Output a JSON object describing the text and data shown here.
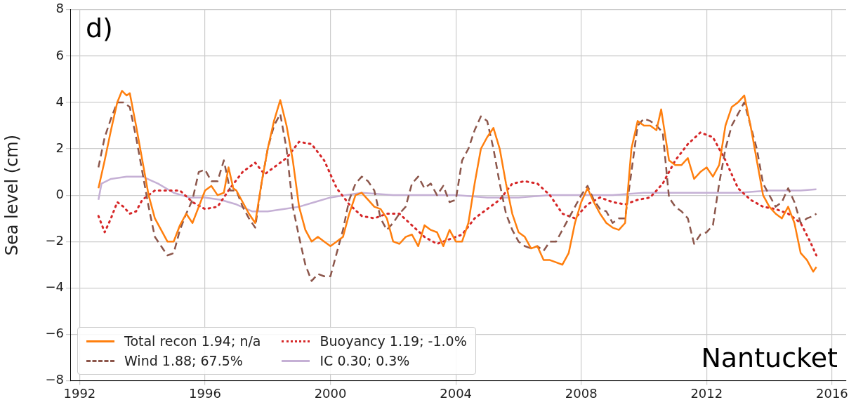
{
  "chart_data": {
    "type": "line",
    "ylabel": "Sea level (cm)",
    "annotations": [
      "d)",
      "Nantucket"
    ],
    "xlim": [
      1991.7,
      2016.45
    ],
    "xticks": [
      1992,
      1996,
      2000,
      2004,
      2008,
      2012,
      2016
    ],
    "ylim": [
      -8,
      8
    ],
    "yticks": [
      -8,
      -6,
      -4,
      -2,
      0,
      2,
      4,
      6,
      8
    ],
    "grid": true,
    "legend": "bottom left",
    "marker": "none",
    "series": [
      {
        "name": "Total recon 1.94; n/a",
        "color": "#ff7f0e",
        "line_style": "solid",
        "x": [
          1992.6,
          1992.8,
          1993.0,
          1993.2,
          1993.35,
          1993.5,
          1993.6,
          1993.8,
          1994.0,
          1994.2,
          1994.4,
          1994.6,
          1994.8,
          1995.0,
          1995.2,
          1995.4,
          1995.6,
          1995.8,
          1996.0,
          1996.2,
          1996.4,
          1996.6,
          1996.75,
          1996.9,
          1997.0,
          1997.2,
          1997.4,
          1997.6,
          1997.8,
          1998.0,
          1998.2,
          1998.4,
          1998.6,
          1998.8,
          1999.0,
          1999.2,
          1999.4,
          1999.6,
          1999.8,
          2000.0,
          2000.2,
          2000.4,
          2000.6,
          2000.8,
          2001.0,
          2001.2,
          2001.4,
          2001.6,
          2001.8,
          2002.0,
          2002.2,
          2002.4,
          2002.6,
          2002.8,
          2003.0,
          2003.2,
          2003.4,
          2003.6,
          2003.8,
          2004.0,
          2004.2,
          2004.4,
          2004.6,
          2004.8,
          2005.0,
          2005.2,
          2005.4,
          2005.6,
          2005.8,
          2006.0,
          2006.2,
          2006.4,
          2006.6,
          2006.8,
          2007.0,
          2007.2,
          2007.4,
          2007.6,
          2007.8,
          2008.0,
          2008.2,
          2008.4,
          2008.6,
          2008.8,
          2009.0,
          2009.2,
          2009.4,
          2009.6,
          2009.8,
          2010.0,
          2010.2,
          2010.4,
          2010.55,
          2010.8,
          2011.0,
          2011.2,
          2011.4,
          2011.6,
          2011.8,
          2012.0,
          2012.2,
          2012.4,
          2012.6,
          2012.8,
          2013.0,
          2013.2,
          2013.4,
          2013.6,
          2013.8,
          2014.0,
          2014.2,
          2014.4,
          2014.6,
          2014.8,
          2015.0,
          2015.2,
          2015.4,
          2015.5
        ],
        "values": [
          0.3,
          1.5,
          2.8,
          4.0,
          4.5,
          4.3,
          4.4,
          3.0,
          1.5,
          0.0,
          -1.0,
          -1.5,
          -2.0,
          -2.0,
          -1.3,
          -0.8,
          -1.2,
          -0.5,
          0.2,
          0.4,
          0.0,
          0.1,
          1.2,
          0.3,
          0.2,
          -0.3,
          -0.8,
          -1.2,
          0.5,
          2.0,
          3.2,
          4.1,
          3.0,
          1.5,
          -0.5,
          -1.5,
          -2.0,
          -1.8,
          -2.0,
          -2.2,
          -2.0,
          -1.8,
          -0.8,
          0.0,
          0.1,
          -0.2,
          -0.5,
          -0.6,
          -1.0,
          -2.0,
          -2.1,
          -1.8,
          -1.7,
          -2.2,
          -1.3,
          -1.5,
          -1.6,
          -2.2,
          -1.5,
          -2.0,
          -2.0,
          -1.2,
          0.5,
          2.0,
          2.5,
          2.9,
          2.0,
          0.5,
          -0.8,
          -1.6,
          -1.8,
          -2.3,
          -2.2,
          -2.8,
          -2.8,
          -2.9,
          -3.0,
          -2.5,
          -1.2,
          -0.3,
          0.3,
          -0.3,
          -0.8,
          -1.2,
          -1.4,
          -1.5,
          -1.2,
          2.0,
          3.2,
          3.0,
          3.0,
          2.8,
          3.7,
          1.5,
          1.3,
          1.3,
          1.6,
          0.7,
          1.0,
          1.2,
          0.8,
          1.3,
          3.0,
          3.8,
          4.0,
          4.3,
          3.0,
          1.5,
          0.0,
          -0.5,
          -0.8,
          -1.0,
          -0.5,
          -1.2,
          -2.5,
          -2.8,
          -3.3,
          -3.1
        ]
      },
      {
        "name": "Wind 1.88; 67.5%",
        "color": "#8c564b",
        "line_style": "dashed",
        "x": [
          1992.6,
          1992.8,
          1993.0,
          1993.2,
          1993.4,
          1993.6,
          1993.8,
          1994.0,
          1994.2,
          1994.4,
          1994.6,
          1994.8,
          1995.0,
          1995.2,
          1995.4,
          1995.6,
          1995.8,
          1996.0,
          1996.2,
          1996.4,
          1996.6,
          1996.8,
          1997.0,
          1997.2,
          1997.4,
          1997.6,
          1997.8,
          1998.0,
          1998.2,
          1998.4,
          1998.6,
          1998.8,
          1999.0,
          1999.2,
          1999.4,
          1999.6,
          1999.8,
          2000.0,
          2000.2,
          2000.4,
          2000.6,
          2000.8,
          2001.0,
          2001.2,
          2001.4,
          2001.6,
          2001.8,
          2002.0,
          2002.2,
          2002.4,
          2002.6,
          2002.8,
          2003.0,
          2003.2,
          2003.4,
          2003.6,
          2003.8,
          2004.0,
          2004.2,
          2004.4,
          2004.6,
          2004.8,
          2005.0,
          2005.2,
          2005.4,
          2005.6,
          2005.8,
          2006.0,
          2006.2,
          2006.4,
          2006.6,
          2006.8,
          2007.0,
          2007.2,
          2007.4,
          2007.6,
          2007.8,
          2008.0,
          2008.2,
          2008.4,
          2008.6,
          2008.8,
          2009.0,
          2009.2,
          2009.4,
          2009.6,
          2009.8,
          2010.0,
          2010.2,
          2010.4,
          2010.6,
          2010.8,
          2011.0,
          2011.2,
          2011.4,
          2011.6,
          2011.8,
          2012.0,
          2012.2,
          2012.4,
          2012.6,
          2012.8,
          2013.0,
          2013.2,
          2013.4,
          2013.6,
          2013.8,
          2014.0,
          2014.2,
          2014.4,
          2014.6,
          2014.8,
          2015.0,
          2015.2,
          2015.4,
          2015.5
        ],
        "values": [
          1.2,
          2.5,
          3.3,
          4.0,
          4.0,
          3.8,
          2.5,
          1.0,
          -0.5,
          -1.8,
          -2.2,
          -2.6,
          -2.5,
          -1.5,
          -0.8,
          -0.2,
          1.0,
          1.1,
          0.6,
          0.6,
          1.5,
          0.2,
          0.2,
          -0.5,
          -1.0,
          -1.4,
          0.5,
          2.0,
          3.0,
          3.5,
          2.0,
          -0.5,
          -1.8,
          -3.0,
          -3.7,
          -3.4,
          -3.5,
          -3.5,
          -2.5,
          -1.5,
          -0.2,
          0.5,
          0.8,
          0.6,
          0.2,
          -1.0,
          -1.5,
          -1.2,
          -0.8,
          -0.5,
          0.5,
          0.8,
          0.3,
          0.5,
          0.0,
          0.4,
          -0.3,
          -0.2,
          1.5,
          2.0,
          2.8,
          3.4,
          3.2,
          2.0,
          0.5,
          -0.8,
          -1.5,
          -2.0,
          -2.2,
          -2.3,
          -2.2,
          -2.4,
          -2.0,
          -2.0,
          -1.5,
          -1.0,
          -0.5,
          0.0,
          0.4,
          -0.2,
          -0.6,
          -0.7,
          -1.2,
          -1.0,
          -1.0,
          1.0,
          3.0,
          3.3,
          3.2,
          3.0,
          2.7,
          -0.1,
          -0.5,
          -0.7,
          -1.0,
          -2.1,
          -1.7,
          -1.6,
          -1.3,
          0.5,
          2.0,
          3.0,
          3.5,
          4.0,
          3.0,
          2.0,
          0.5,
          0.0,
          -0.5,
          -0.3,
          0.3,
          -0.3,
          -1.2,
          -1.0,
          -0.9,
          -0.8
        ]
      },
      {
        "name": "Buoyancy 1.19; -1.0%",
        "color": "#d62728",
        "line_style": "dotted",
        "x": [
          1992.6,
          1992.8,
          1993.0,
          1993.2,
          1993.4,
          1993.6,
          1993.8,
          1994.0,
          1994.4,
          1994.8,
          1995.2,
          1995.6,
          1996.0,
          1996.4,
          1996.8,
          1997.2,
          1997.6,
          1997.9,
          1998.2,
          1998.6,
          1999.0,
          1999.4,
          1999.8,
          2000.2,
          2000.6,
          2001.0,
          2001.4,
          2001.8,
          2002.2,
          2002.6,
          2003.0,
          2003.4,
          2003.8,
          2004.2,
          2004.6,
          2005.0,
          2005.4,
          2005.8,
          2006.2,
          2006.6,
          2007.0,
          2007.4,
          2007.8,
          2008.2,
          2008.6,
          2009.0,
          2009.4,
          2009.8,
          2010.2,
          2010.6,
          2011.0,
          2011.4,
          2011.8,
          2012.2,
          2012.6,
          2013.0,
          2013.4,
          2013.8,
          2014.2,
          2014.6,
          2015.0,
          2015.3,
          2015.5
        ],
        "values": [
          -0.9,
          -1.6,
          -1.0,
          -0.3,
          -0.5,
          -0.8,
          -0.7,
          -0.2,
          0.2,
          0.2,
          0.2,
          -0.3,
          -0.6,
          -0.5,
          0.3,
          1.0,
          1.4,
          0.9,
          1.2,
          1.6,
          2.3,
          2.2,
          1.5,
          0.3,
          -0.4,
          -0.9,
          -1.0,
          -0.8,
          -0.8,
          -1.3,
          -1.8,
          -2.1,
          -1.9,
          -1.7,
          -1.0,
          -0.6,
          -0.2,
          0.5,
          0.6,
          0.5,
          0.0,
          -0.8,
          -1.0,
          -0.4,
          -0.1,
          -0.3,
          -0.4,
          -0.2,
          -0.1,
          0.5,
          1.5,
          2.2,
          2.7,
          2.5,
          1.5,
          0.3,
          -0.2,
          -0.5,
          -0.6,
          -0.8,
          -1.2,
          -2.0,
          -2.6
        ]
      },
      {
        "name": "IC 0.30; 0.3%",
        "color": "#c5b0d5",
        "line_style": "solid",
        "x": [
          1992.6,
          1992.7,
          1993.0,
          1993.5,
          1994.0,
          1994.5,
          1995.0,
          1995.5,
          1996.0,
          1996.5,
          1997.0,
          1997.5,
          1998.0,
          1998.5,
          1999.0,
          1999.5,
          2000.0,
          2000.5,
          2001.0,
          2002.0,
          2003.0,
          2004.0,
          2005.0,
          2006.0,
          2007.0,
          2008.0,
          2009.0,
          2010.0,
          2011.0,
          2012.0,
          2013.0,
          2014.0,
          2015.0,
          2015.5
        ],
        "values": [
          -0.2,
          0.5,
          0.7,
          0.8,
          0.8,
          0.5,
          0.1,
          -0.1,
          -0.1,
          -0.2,
          -0.4,
          -0.7,
          -0.7,
          -0.6,
          -0.5,
          -0.3,
          -0.1,
          0.0,
          0.1,
          0.0,
          0.0,
          0.0,
          -0.1,
          -0.1,
          0.0,
          0.0,
          0.0,
          0.1,
          0.1,
          0.1,
          0.1,
          0.2,
          0.2,
          0.25
        ]
      }
    ]
  }
}
